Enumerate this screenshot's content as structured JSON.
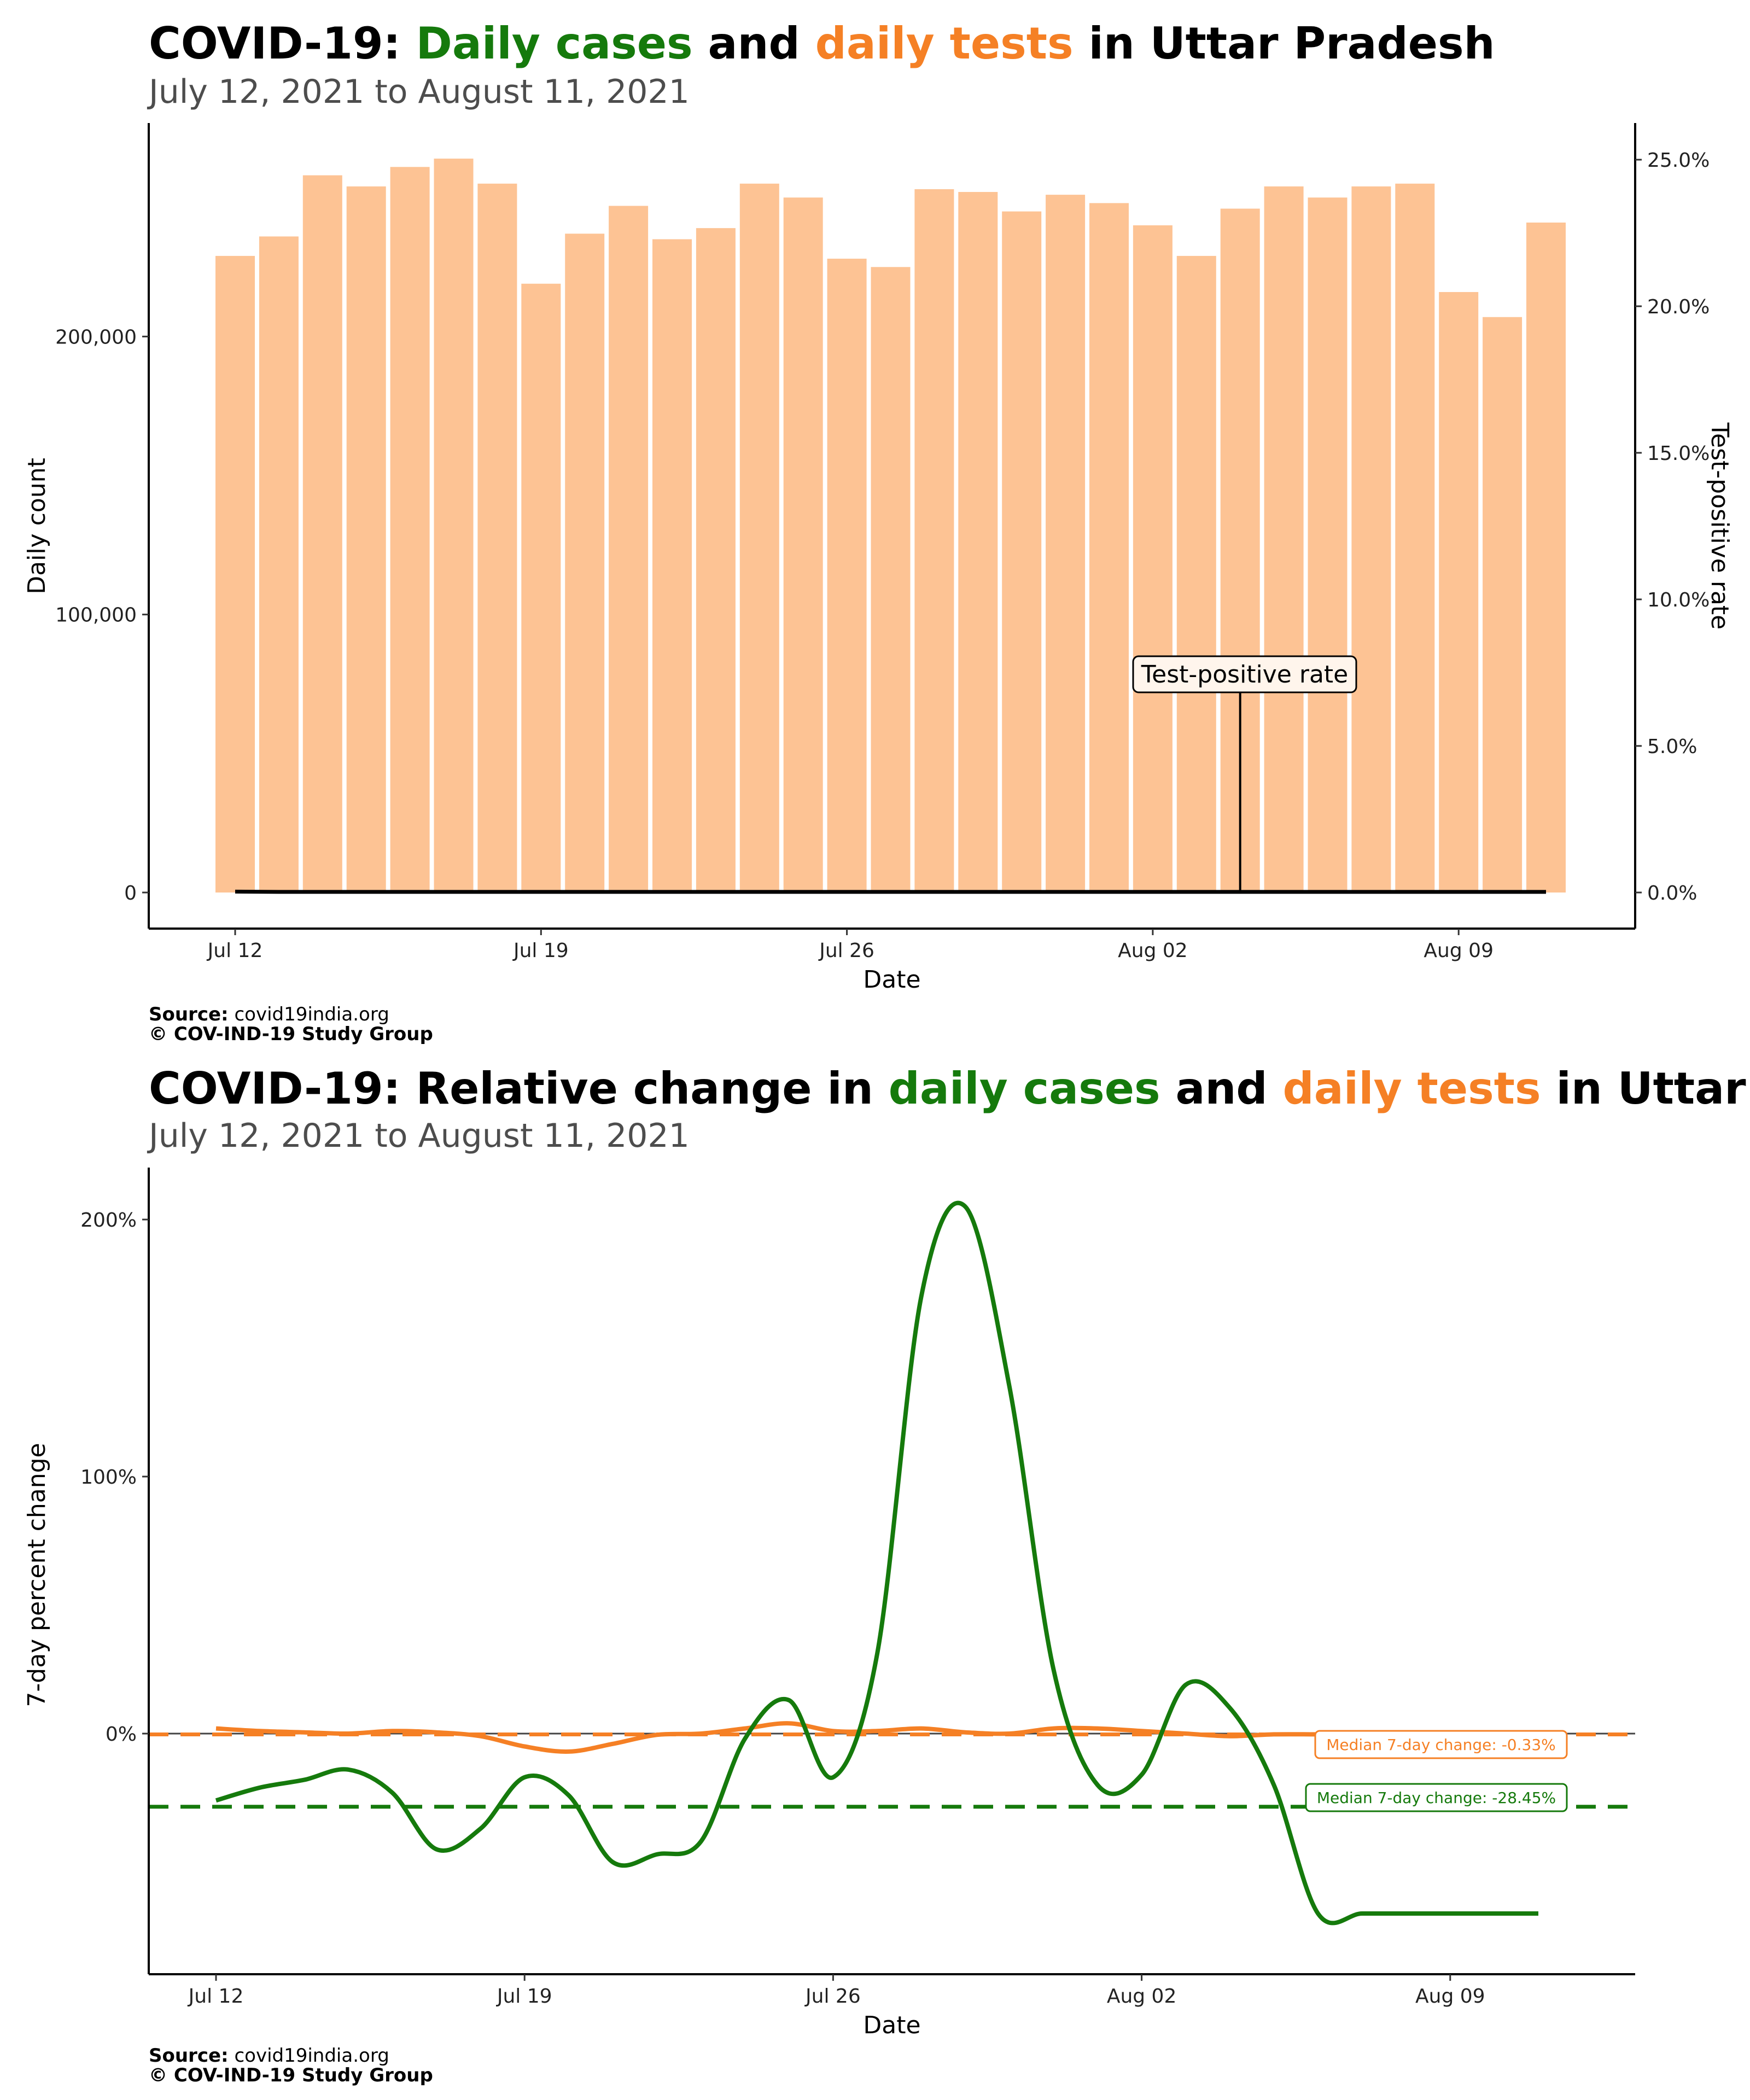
{
  "colors": {
    "cases": "#157a0c",
    "tests": "#f58025",
    "tests_bar": "#fdc394",
    "tpr_line": "#000000"
  },
  "chart_data": [
    {
      "type": "bar",
      "title_parts": [
        {
          "text": "COVID-19: ",
          "color": "#000000"
        },
        {
          "text": "Daily cases",
          "color": "#157a0c"
        },
        {
          "text": " and ",
          "color": "#000000"
        },
        {
          "text": "daily tests",
          "color": "#f58025"
        },
        {
          "text": " in Uttar Pradesh",
          "color": "#000000"
        }
      ],
      "subtitle": "July 12, 2021 to August 11, 2021",
      "xlabel": "Date",
      "ylabel": "Daily count",
      "y2label": "Test-positive rate",
      "x_ticks": [
        "Jul 12",
        "Jul 19",
        "Jul 26",
        "Aug 02",
        "Aug 09"
      ],
      "y_ticks": [
        "0",
        "100,000",
        "200,000"
      ],
      "y2_ticks": [
        "0.0%",
        "5.0%",
        "10.0%",
        "15.0%",
        "20.0%",
        "25.0%"
      ],
      "ylim": [
        0,
        268000
      ],
      "y2lim": [
        0,
        25.5
      ],
      "dates": [
        "Jul 12",
        "Jul 13",
        "Jul 14",
        "Jul 15",
        "Jul 16",
        "Jul 17",
        "Jul 18",
        "Jul 19",
        "Jul 20",
        "Jul 21",
        "Jul 22",
        "Jul 23",
        "Jul 24",
        "Jul 25",
        "Jul 26",
        "Jul 27",
        "Jul 28",
        "Jul 29",
        "Jul 30",
        "Jul 31",
        "Aug 01",
        "Aug 02",
        "Aug 03",
        "Aug 04",
        "Aug 05",
        "Aug 06",
        "Aug 07",
        "Aug 08",
        "Aug 09",
        "Aug 10",
        "Aug 11"
      ],
      "tests": [
        229000,
        236000,
        258000,
        254000,
        261000,
        264000,
        255000,
        219000,
        237000,
        247000,
        235000,
        239000,
        255000,
        250000,
        228000,
        225000,
        253000,
        252000,
        245000,
        251000,
        248000,
        240000,
        229000,
        246000,
        254000,
        250000,
        254000,
        255000,
        216000,
        207000,
        241000
      ],
      "tpr": [
        0.03,
        0.02,
        0.02,
        0.02,
        0.02,
        0.02,
        0.02,
        0.02,
        0.02,
        0.02,
        0.02,
        0.02,
        0.02,
        0.02,
        0.02,
        0.02,
        0.02,
        0.02,
        0.02,
        0.02,
        0.02,
        0.02,
        0.02,
        0.02,
        0.02,
        0.02,
        0.02,
        0.02,
        0.02,
        0.02,
        0.02
      ],
      "annotation": {
        "text": "Test-positive rate",
        "date_index": 23
      },
      "source_label": "Source:",
      "source_value": " covid19india.org",
      "copyright": "© COV-IND-19 Study Group"
    },
    {
      "type": "line",
      "title_parts": [
        {
          "text": "COVID-19: Relative change in ",
          "color": "#000000"
        },
        {
          "text": "daily cases",
          "color": "#157a0c"
        },
        {
          "text": " and ",
          "color": "#000000"
        },
        {
          "text": "daily tests",
          "color": "#f58025"
        },
        {
          "text": " in Uttar Pradesh",
          "color": "#000000"
        }
      ],
      "subtitle": "July 12, 2021 to August 11, 2021",
      "xlabel": "Date",
      "ylabel": "7-day percent change",
      "x_ticks": [
        "Jul 12",
        "Jul 19",
        "Jul 26",
        "Aug 02",
        "Aug 09"
      ],
      "y_ticks": [
        "0%",
        "100%",
        "200%"
      ],
      "ylim": [
        -76,
        218
      ],
      "days": [
        0,
        1,
        2,
        3,
        4,
        5,
        6,
        7,
        8,
        9,
        10,
        11,
        12,
        13,
        14,
        15,
        16,
        17,
        18,
        19,
        20,
        21,
        22,
        23,
        24,
        25,
        26,
        27,
        28,
        29,
        30
      ],
      "series": [
        {
          "name": "cases",
          "values": [
            -26,
            -21,
            -18,
            -14,
            -23,
            -45,
            -37,
            -17,
            -24,
            -50,
            -47,
            -42,
            -2,
            13,
            -17,
            31,
            170,
            205,
            135,
            25,
            -20,
            -16,
            19,
            10,
            -20,
            -70,
            -70,
            -70,
            -70,
            -70,
            -70
          ]
        },
        {
          "name": "tests",
          "values": [
            2,
            1,
            0.5,
            0,
            1,
            0.5,
            -1,
            -5,
            -7,
            -4,
            -0.5,
            0,
            2,
            4,
            1,
            1,
            2,
            0.5,
            0,
            2,
            2,
            1,
            0,
            -1,
            -0.3,
            -0.3,
            -0.3,
            -0.3,
            -0.3,
            -0.3,
            -0.3
          ]
        }
      ],
      "medians": [
        {
          "name": "tests",
          "value": -0.33,
          "label": "Median 7-day change: -0.33%"
        },
        {
          "name": "cases",
          "value": -28.45,
          "label": "Median 7-day change: -28.45%"
        }
      ],
      "source_label": "Source:",
      "source_value": " covid19india.org",
      "copyright": "© COV-IND-19 Study Group"
    }
  ]
}
